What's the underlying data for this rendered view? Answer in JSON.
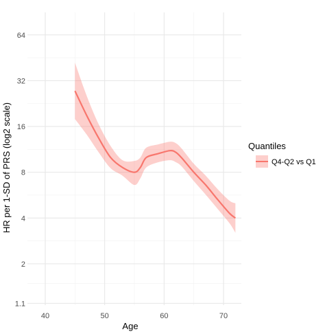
{
  "chart_data": {
    "type": "line",
    "title": "",
    "xlabel": "Age",
    "ylabel": "HR per 1-SD of PRS (log2 scale)",
    "y_scale": "log2",
    "xlim": [
      37,
      73
    ],
    "ylim": [
      1.07,
      90
    ],
    "x_ticks": [
      40,
      50,
      60,
      70
    ],
    "y_ticks": [
      1.1,
      2,
      4,
      8,
      16,
      32,
      64
    ],
    "grid": true,
    "legend": {
      "title": "Quantiles",
      "position": "right",
      "entries": [
        "Q4-Q2 vs Q1"
      ]
    },
    "series": [
      {
        "name": "Q4-Q2 vs Q1",
        "color": "#f8766d",
        "ribbon_color": "#f8766d",
        "x": [
          45,
          47,
          49,
          51,
          53,
          55,
          56,
          57,
          59,
          61,
          62,
          63,
          65,
          67,
          69,
          71,
          72
        ],
        "y": [
          27.4,
          18.8,
          13.4,
          10.0,
          8.6,
          8.0,
          8.6,
          10.0,
          10.6,
          11.1,
          10.8,
          9.9,
          8.0,
          6.6,
          5.3,
          4.3,
          4.0
        ],
        "lower": [
          17.9,
          14.1,
          10.8,
          8.5,
          7.6,
          6.6,
          7.3,
          8.6,
          9.3,
          9.6,
          9.3,
          8.7,
          7.0,
          5.7,
          4.6,
          3.7,
          3.2
        ],
        "upper": [
          42.0,
          25.3,
          16.5,
          11.9,
          9.6,
          9.5,
          10.0,
          11.6,
          12.2,
          12.7,
          12.4,
          11.4,
          9.1,
          7.6,
          6.2,
          5.2,
          5.0
        ]
      }
    ]
  }
}
